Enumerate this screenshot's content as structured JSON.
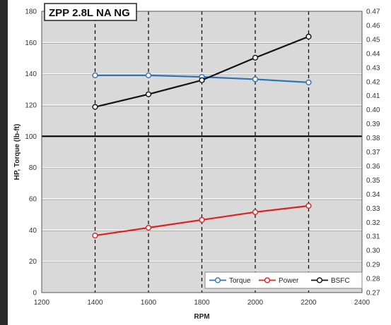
{
  "chart_data": {
    "type": "line",
    "title": "ZPP 2.8L NA NG",
    "xlabel": "RPM",
    "ylabel": "HP, Torque (lb-ft)",
    "y2label": "",
    "xlim": [
      1200,
      2400
    ],
    "ylim": [
      0,
      180
    ],
    "y2lim": [
      0.27,
      0.47
    ],
    "x_ticks": [
      1200,
      1400,
      1600,
      1800,
      2000,
      2200,
      2400
    ],
    "y_ticks": [
      0,
      20,
      40,
      60,
      80,
      100,
      120,
      140,
      160,
      180
    ],
    "y2_ticks": [
      0.27,
      0.28,
      0.29,
      0.3,
      0.31,
      0.32,
      0.33,
      0.34,
      0.35,
      0.36,
      0.37,
      0.38,
      0.39,
      0.4,
      0.41,
      0.42,
      0.43,
      0.44,
      0.45,
      0.46,
      0.47
    ],
    "x": [
      1400,
      1600,
      1800,
      2000,
      2200
    ],
    "series": [
      {
        "name": "Torque",
        "axis": "left",
        "color": "#2e75b6",
        "values": [
          139,
          139,
          138,
          136.5,
          134.5
        ]
      },
      {
        "name": "Power",
        "axis": "left",
        "color": "#e02020",
        "values": [
          36.5,
          41.5,
          46.5,
          51.5,
          55.5
        ]
      },
      {
        "name": "BSFC",
        "axis": "right",
        "color": "#111111",
        "values": [
          0.402,
          0.411,
          0.421,
          0.437,
          0.452
        ]
      }
    ],
    "legend": "bottom-right",
    "grid": true,
    "colors": {
      "plot_bg": "#d9d9d9",
      "bold_line": "#000000",
      "grid_line": "#ffffff"
    }
  }
}
